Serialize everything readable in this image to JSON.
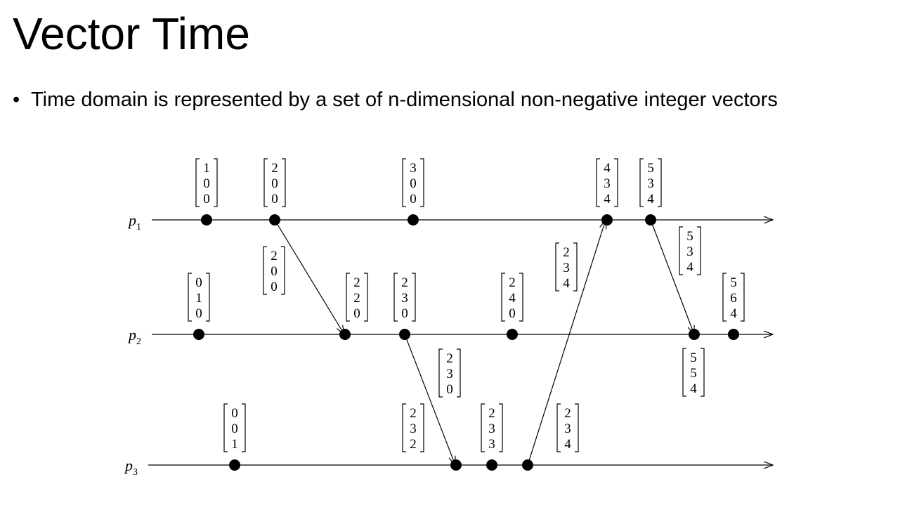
{
  "title": "Vector Time",
  "bullet": "Time domain is represented by a set of n-dimensional non-negative integer vectors",
  "processes": [
    {
      "letter": "p",
      "sub": "1"
    },
    {
      "letter": "p",
      "sub": "2"
    },
    {
      "letter": "p",
      "sub": "3"
    }
  ],
  "events": {
    "p1": [
      [
        "1",
        "0",
        "0"
      ],
      [
        "2",
        "0",
        "0"
      ],
      [
        "3",
        "0",
        "0"
      ],
      [
        "4",
        "3",
        "4"
      ],
      [
        "5",
        "3",
        "4"
      ]
    ],
    "p2": [
      [
        "0",
        "1",
        "0"
      ],
      [
        "2",
        "2",
        "0"
      ],
      [
        "2",
        "3",
        "0"
      ],
      [
        "2",
        "4",
        "0"
      ],
      [
        "5",
        "5",
        "4"
      ],
      [
        "5",
        "6",
        "4"
      ]
    ],
    "p3": [
      [
        "0",
        "0",
        "1"
      ],
      [
        "2",
        "3",
        "2"
      ],
      [
        "2",
        "3",
        "3"
      ],
      [
        "2",
        "3",
        "4"
      ]
    ]
  },
  "message_timestamps": [
    [
      "2",
      "0",
      "0"
    ],
    [
      "2",
      "3",
      "0"
    ],
    [
      "2",
      "3",
      "4"
    ],
    [
      "5",
      "3",
      "4"
    ]
  ]
}
